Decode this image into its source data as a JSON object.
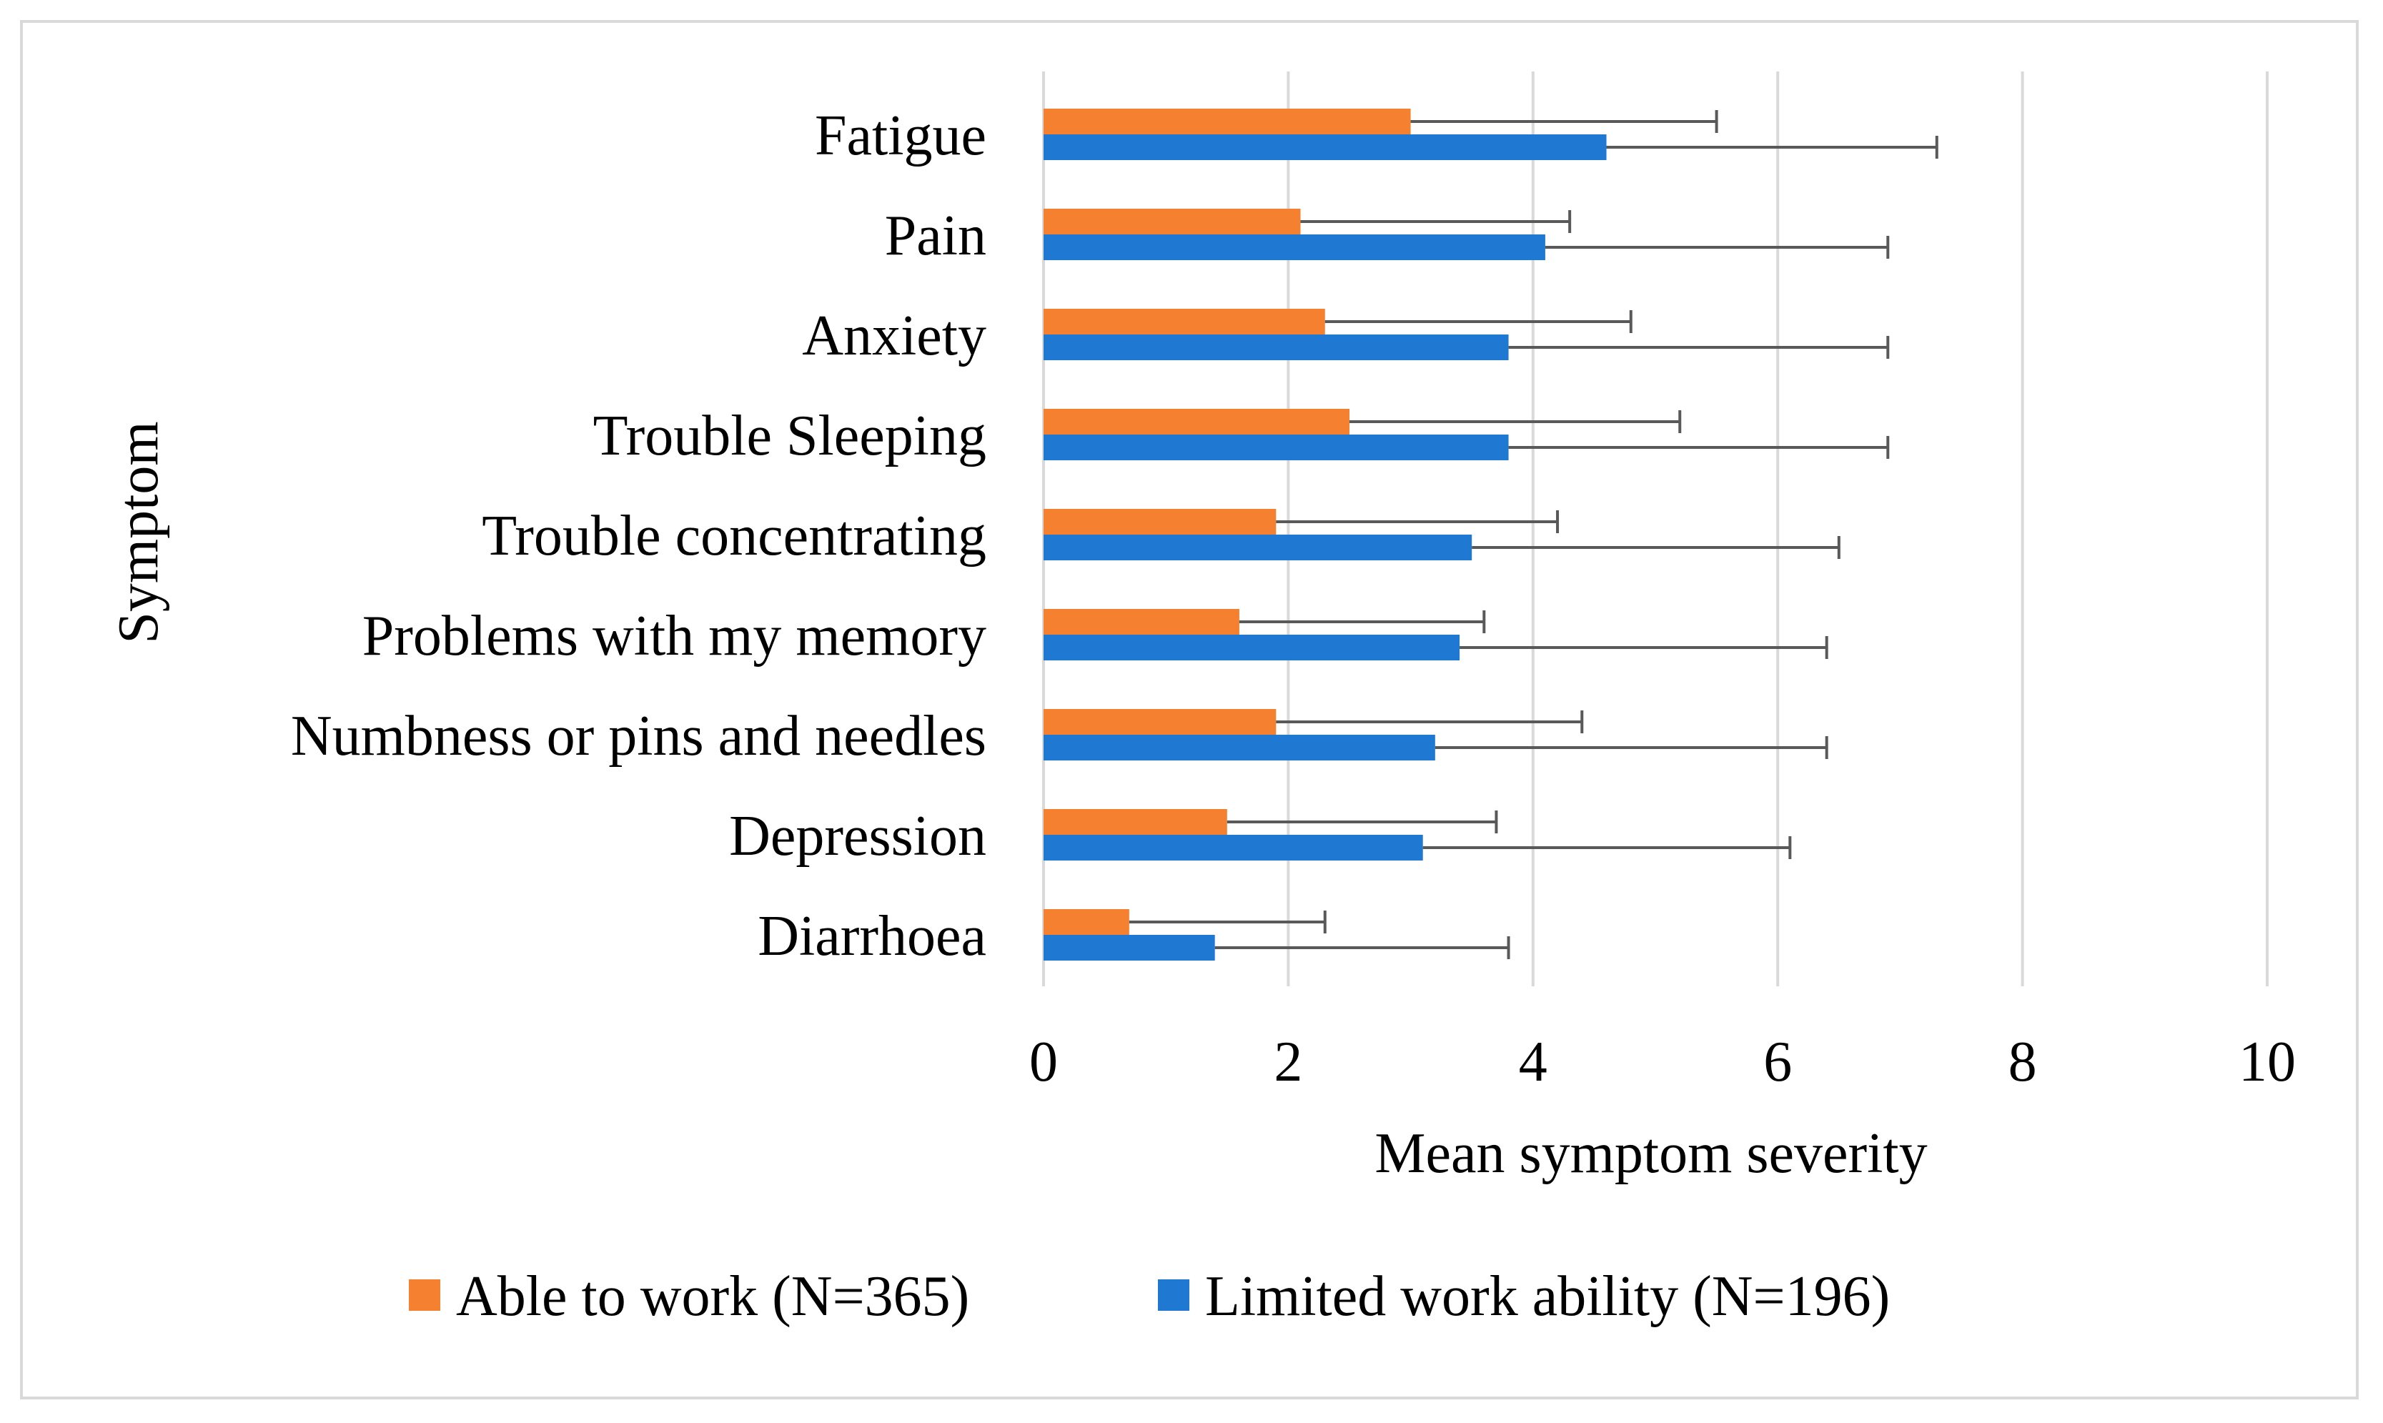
{
  "chart_data": {
    "type": "bar",
    "orientation": "horizontal",
    "categories": [
      "Fatigue",
      "Pain",
      "Anxiety",
      "Trouble Sleeping",
      "Trouble concentrating",
      "Problems with my memory",
      "Numbness or pins and needles",
      "Depression",
      "Diarrhoea"
    ],
    "series": [
      {
        "name": "Able to work (N=365)",
        "color": "#f58130",
        "values": [
          3.0,
          2.1,
          2.3,
          2.5,
          1.9,
          1.6,
          1.9,
          1.5,
          0.7
        ],
        "error_upper": [
          5.5,
          4.3,
          4.8,
          5.2,
          4.2,
          3.6,
          4.4,
          3.7,
          2.3
        ]
      },
      {
        "name": "Limited work ability (N=196)",
        "color": "#1f78d1",
        "values": [
          4.6,
          4.1,
          3.8,
          3.8,
          3.5,
          3.4,
          3.2,
          3.1,
          1.4
        ],
        "error_upper": [
          7.3,
          6.9,
          6.9,
          6.9,
          6.5,
          6.4,
          6.4,
          6.1,
          3.8
        ]
      }
    ],
    "xlim": [
      0,
      10
    ],
    "xticks": [
      "0",
      "2",
      "4",
      "6",
      "8",
      "10"
    ],
    "xlabel": "Mean symptom severity",
    "ylabel": "Symptom",
    "title": "",
    "grid": "vertical",
    "legend_position": "bottom"
  }
}
